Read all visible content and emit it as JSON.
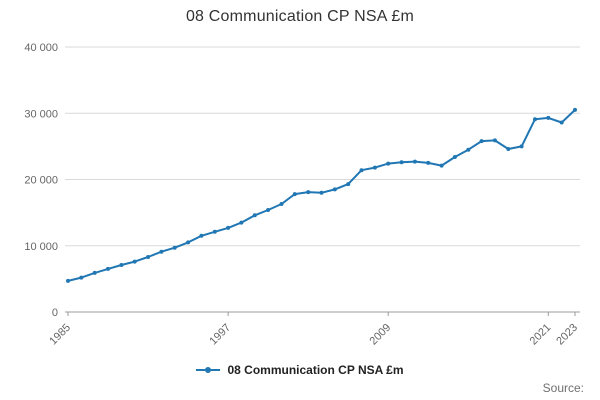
{
  "title": "08 Communication CP NSA £m",
  "legend": {
    "label": "08 Communication CP NSA £m"
  },
  "source": {
    "label": "Source:"
  },
  "colors": {
    "line": "#2077b4",
    "grid": "#d9d9d9",
    "axis": "#9b9b9b",
    "tick_text": "#666666"
  },
  "chart_data": {
    "type": "line",
    "title": "08 Communication CP NSA £m",
    "series_name": "08 Communication CP NSA £m",
    "x": [
      1985,
      1986,
      1987,
      1988,
      1989,
      1990,
      1991,
      1992,
      1993,
      1994,
      1995,
      1996,
      1997,
      1998,
      1999,
      2000,
      2001,
      2002,
      2003,
      2004,
      2005,
      2006,
      2007,
      2008,
      2009,
      2010,
      2011,
      2012,
      2013,
      2014,
      2015,
      2016,
      2017,
      2018,
      2019,
      2020,
      2021,
      2022,
      2023
    ],
    "values": [
      4700,
      5200,
      5900,
      6500,
      7100,
      7600,
      8300,
      9100,
      9700,
      10500,
      11500,
      12100,
      12700,
      13500,
      14600,
      15400,
      16300,
      17800,
      18100,
      18000,
      18500,
      19300,
      21400,
      21800,
      22400,
      22600,
      22700,
      22500,
      22100,
      23400,
      24500,
      25800,
      25900,
      24600,
      25000,
      29100,
      29300,
      28600,
      30500
    ],
    "xlim": [
      1985,
      2023
    ],
    "ylim": [
      0,
      40000
    ],
    "xticks": [
      1985,
      1997,
      2009,
      2021,
      2023
    ],
    "yticks": [
      {
        "value": 0,
        "label": "0"
      },
      {
        "value": 10000,
        "label": "10 000"
      },
      {
        "value": 20000,
        "label": "20 000"
      },
      {
        "value": 30000,
        "label": "30 000"
      },
      {
        "value": 40000,
        "label": "40 000"
      }
    ],
    "grid": "horizontal",
    "legend_position": "bottom",
    "marker": "circle"
  }
}
